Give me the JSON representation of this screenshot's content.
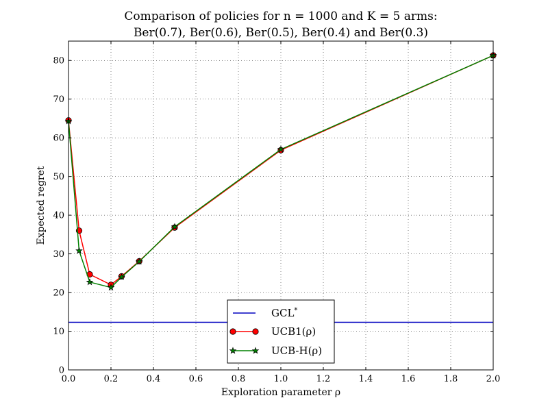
{
  "chart_data": {
    "type": "line",
    "title_line1": "Comparison of policies for n = 1000 and K = 5 arms:",
    "title_line2": "Ber(0.7), Ber(0.6), Ber(0.5), Ber(0.4) and Ber(0.3)",
    "xlabel": "Exploration parameter ρ",
    "ylabel": "Expected regret",
    "xlim": [
      0,
      2
    ],
    "ylim": [
      0,
      85
    ],
    "x_ticks": [
      0,
      0.2,
      0.4,
      0.6,
      0.8,
      1,
      1.2,
      1.4,
      1.6,
      1.8,
      2
    ],
    "x_tick_labels": [
      "0.0",
      "0.2",
      "0.4",
      "0.6",
      "0.8",
      "1.0",
      "1.2",
      "1.4",
      "1.6",
      "1.8",
      "2.0"
    ],
    "y_ticks": [
      0,
      10,
      20,
      30,
      40,
      50,
      60,
      70,
      80
    ],
    "y_tick_labels": [
      "0",
      "10",
      "20",
      "30",
      "40",
      "50",
      "60",
      "70",
      "80"
    ],
    "grid": true,
    "legend_placement": "bottom-center",
    "series": [
      {
        "name": "GCL*",
        "legend_main": "GCL",
        "legend_sup": "*",
        "kind": "hline",
        "color": "#0000bf",
        "y": 12.3
      },
      {
        "name": "UCB1(ρ)",
        "legend_main": "UCB1(ρ)",
        "kind": "line",
        "marker": "circle",
        "color": "#ff0000",
        "x": [
          0,
          0.05,
          0.1,
          0.2,
          0.25,
          0.333,
          0.5,
          1.0,
          2.0
        ],
        "y": [
          64.5,
          36.0,
          24.7,
          22.0,
          24.2,
          28.1,
          36.8,
          56.8,
          81.3
        ]
      },
      {
        "name": "UCB-H(ρ)",
        "legend_main": "UCB-H(ρ)",
        "kind": "line",
        "marker": "star",
        "color": "#008000",
        "x": [
          0,
          0.05,
          0.1,
          0.2,
          0.25,
          0.333,
          0.5,
          1.0,
          2.0
        ],
        "y": [
          64.3,
          30.8,
          22.7,
          21.3,
          24.0,
          28.0,
          37.0,
          57.0,
          81.3
        ]
      }
    ]
  }
}
